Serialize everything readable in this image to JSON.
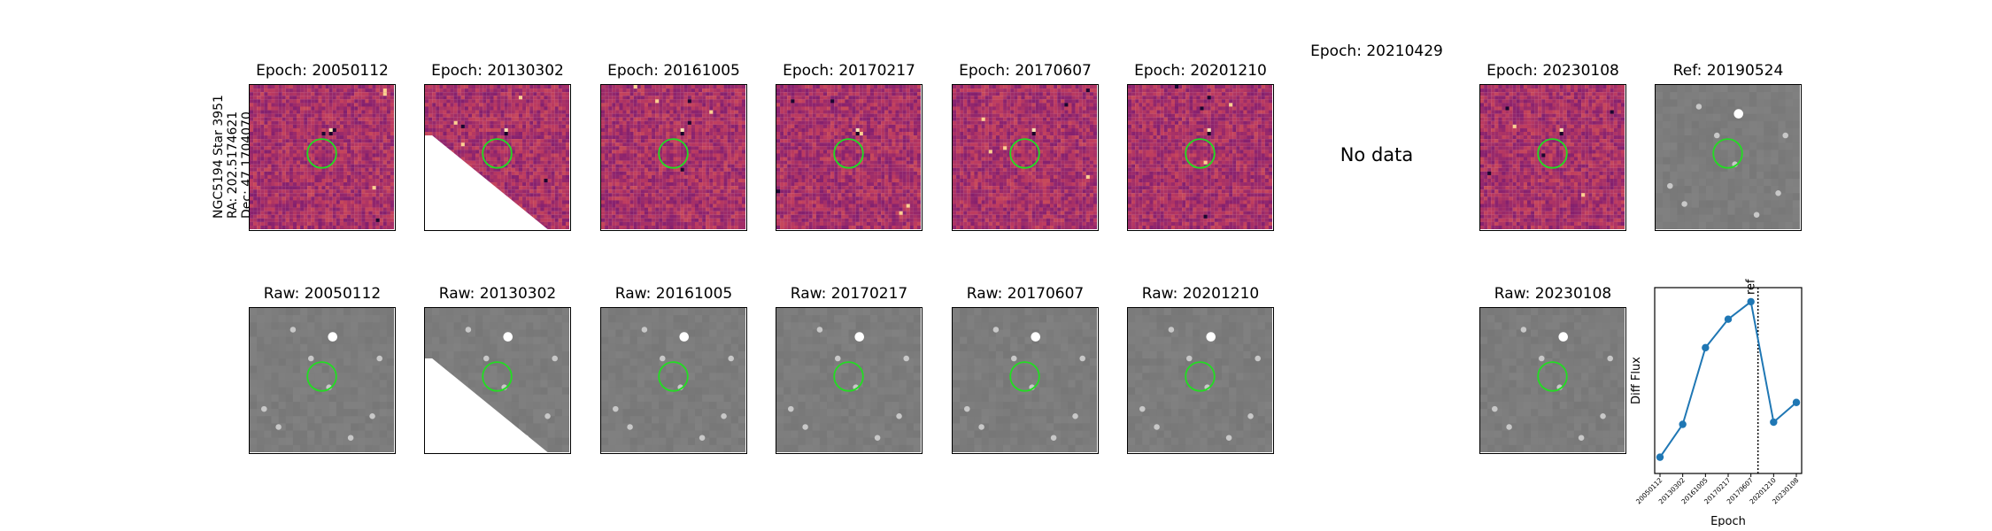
{
  "star_info": {
    "name": "NGC5194 Star 3951",
    "ra": "RA: 202.5174621",
    "dec": "Dec: 47.1704070"
  },
  "epochs": [
    {
      "id": "20050112",
      "diff_title": "Epoch: 20050112",
      "raw_title": "Raw: 20050112",
      "has_data": true,
      "mask": false
    },
    {
      "id": "20130302",
      "diff_title": "Epoch: 20130302",
      "raw_title": "Raw: 20130302",
      "has_data": true,
      "mask": true
    },
    {
      "id": "20161005",
      "diff_title": "Epoch: 20161005",
      "raw_title": "Raw: 20161005",
      "has_data": true,
      "mask": false
    },
    {
      "id": "20170217",
      "diff_title": "Epoch: 20170217",
      "raw_title": "Raw: 20170217",
      "has_data": true,
      "mask": false
    },
    {
      "id": "20170607",
      "diff_title": "Epoch: 20170607",
      "raw_title": "Raw: 20170607",
      "has_data": true,
      "mask": false
    },
    {
      "id": "20201210",
      "diff_title": "Epoch: 20201210",
      "raw_title": "Raw: 20201210",
      "has_data": true,
      "mask": false
    },
    {
      "id": "20210429",
      "diff_title": "Epoch: 20210429",
      "raw_title": "",
      "has_data": false,
      "mask": false
    },
    {
      "id": "20230108",
      "diff_title": "Epoch: 20230108",
      "raw_title": "Raw: 20230108",
      "has_data": true,
      "mask": false
    }
  ],
  "no_data_text": "No data",
  "reference": {
    "title": "Ref: 20190524"
  },
  "colors": {
    "diff_cmap": "magma",
    "aperture": "#22dd22",
    "series": "#1f77b4"
  },
  "chart_data": {
    "type": "line",
    "title": "",
    "xlabel": "Epoch",
    "ylabel": "Diff Flux",
    "x": [
      "20050112",
      "20130302",
      "20161005",
      "20170217",
      "20170607",
      "20201210",
      "20230108"
    ],
    "series": [
      {
        "values": [
          0.05,
          0.2,
          0.55,
          0.68,
          0.76,
          0.21,
          0.3
        ]
      }
    ],
    "reference_line": {
      "after": "20170607",
      "label": "ref",
      "style": "dotted"
    },
    "grid": false
  }
}
